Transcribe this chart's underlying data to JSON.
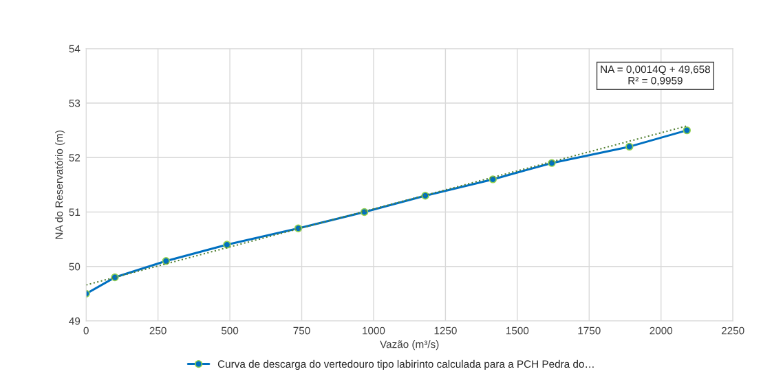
{
  "chart_data": {
    "type": "line",
    "xlabel": "Vazão (m³/s)",
    "ylabel": "NA do Reservatório (m)",
    "x": [
      0,
      100,
      278,
      490,
      738,
      968,
      1180,
      1415,
      1620,
      1890,
      2090
    ],
    "series": [
      {
        "name": "Curva de descarga do vertedouro tipo labirinto calculada para a PCH Pedra do…",
        "color": "#0070c0",
        "values": [
          49.5,
          49.8,
          50.1,
          50.4,
          50.7,
          51.0,
          51.3,
          51.6,
          51.9,
          52.2,
          52.5
        ],
        "marker": "circle",
        "line_style": "solid"
      },
      {
        "type": "line",
        "x": [
          0,
          2090
        ],
        "color": "#548235",
        "values": [
          49.66,
          52.58
        ],
        "marker": "none",
        "line_style": "dotted"
      }
    ],
    "annotations": [
      "NA = 0,0014Q + 49,658\nR² = 0,9959"
    ],
    "xlim": [
      0,
      2250
    ],
    "xticks": [
      0,
      250,
      500,
      750,
      1000,
      1250,
      1500,
      1750,
      2000,
      2250
    ],
    "ylim": [
      49,
      54
    ],
    "yticks": [
      49,
      50,
      51,
      52,
      53,
      54
    ],
    "grid": true,
    "legend": "bottom"
  }
}
